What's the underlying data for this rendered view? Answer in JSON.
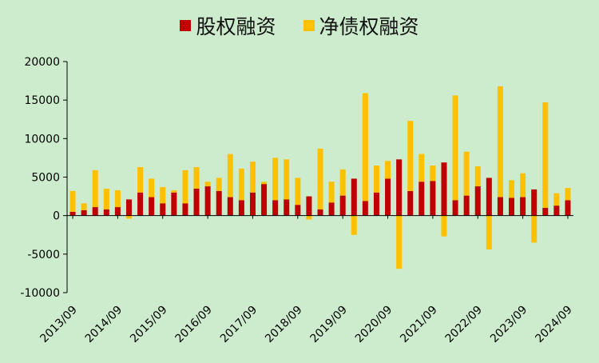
{
  "chart_data": {
    "type": "bar",
    "stacked": true,
    "title": "",
    "xlabel": "",
    "ylabel": "",
    "ylim": [
      -10000,
      20000
    ],
    "yticks": [
      -10000,
      -5000,
      0,
      5000,
      10000,
      15000,
      20000
    ],
    "x_tick_labels": [
      {
        "index": 0,
        "label": "2013/09"
      },
      {
        "index": 4,
        "label": "2014/09"
      },
      {
        "index": 8,
        "label": "2015/09"
      },
      {
        "index": 12,
        "label": "2016/09"
      },
      {
        "index": 16,
        "label": "2017/09"
      },
      {
        "index": 20,
        "label": "2018/09"
      },
      {
        "index": 24,
        "label": "2019/09"
      },
      {
        "index": 28,
        "label": "2020/09"
      },
      {
        "index": 32,
        "label": "2021/09"
      },
      {
        "index": 36,
        "label": "2022/09"
      },
      {
        "index": 40,
        "label": "2023/09"
      },
      {
        "index": 44,
        "label": "2024/09"
      }
    ],
    "legend_position": "top-center",
    "colors": {
      "equity": "#c00000",
      "debt": "#ffc000",
      "background": "#cdeccd"
    },
    "series": [
      {
        "name": "股权融资",
        "values": [
          500,
          700,
          1100,
          800,
          1100,
          2100,
          3000,
          2400,
          1600,
          3000,
          1600,
          3500,
          3800,
          3200,
          2400,
          2000,
          3000,
          4100,
          2000,
          2100,
          1400,
          2500,
          800,
          1700,
          2600,
          4800,
          1900,
          3000,
          4800,
          7300,
          3200,
          4400,
          4500,
          6900,
          2000,
          2600,
          3800,
          4900,
          2400,
          2300,
          2400,
          3400,
          1000,
          1300,
          2000
        ]
      },
      {
        "name": "净债权融资",
        "values": [
          2700,
          900,
          4800,
          2700,
          2200,
          -400,
          3300,
          2400,
          2100,
          300,
          4300,
          2800,
          600,
          1700,
          5600,
          4100,
          4000,
          300,
          5500,
          5200,
          3500,
          -500,
          7900,
          2700,
          3400,
          -2500,
          14000,
          3500,
          2300,
          -6900,
          9100,
          3600,
          2000,
          -2700,
          13600,
          5700,
          2600,
          -4400,
          14400,
          2300,
          3100,
          -3500,
          13700,
          1600,
          1600
        ]
      }
    ]
  }
}
